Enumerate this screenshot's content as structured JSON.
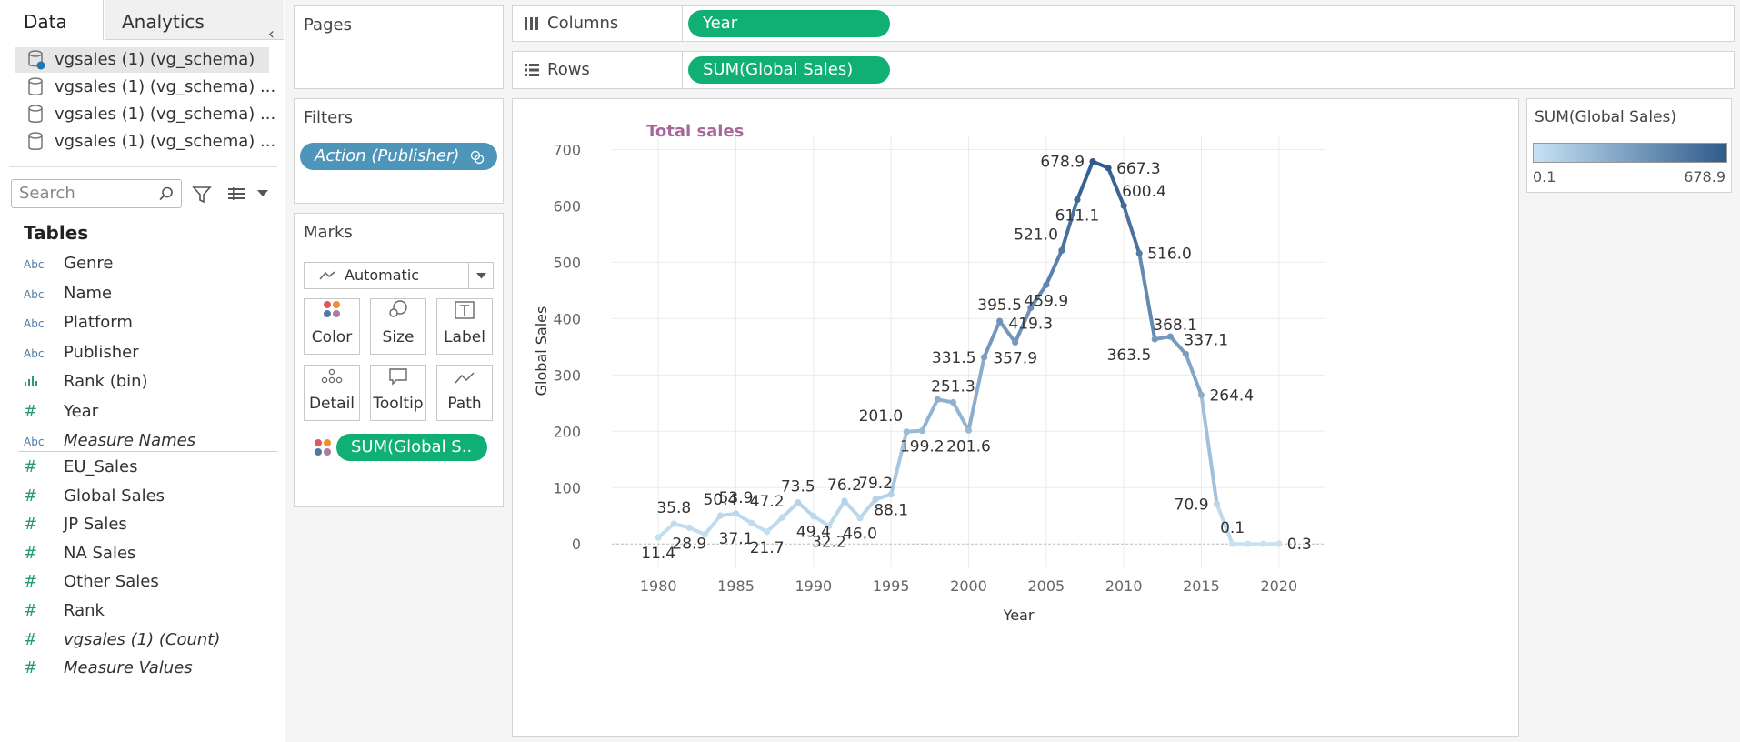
{
  "left_pane": {
    "tabs": [
      "Data",
      "Analytics"
    ],
    "collapse_glyph": "‹",
    "datasources": [
      "vgsales (1) (vg_schema)",
      "vgsales (1) (vg_schema) ...",
      "vgsales (1) (vg_schema) ...",
      "vgsales (1) (vg_schema) ..."
    ],
    "search_placeholder": "Search",
    "tables_title": "Tables",
    "dimensions": [
      {
        "type": "Abc",
        "label": "Genre"
      },
      {
        "type": "Abc",
        "label": "Name"
      },
      {
        "type": "Abc",
        "label": "Platform"
      },
      {
        "type": "Abc",
        "label": "Publisher"
      },
      {
        "type": "bin",
        "label": "Rank (bin)"
      },
      {
        "type": "#",
        "label": "Year"
      },
      {
        "type": "Abc",
        "label": "Measure Names"
      }
    ],
    "measures": [
      {
        "type": "#",
        "label": "EU_Sales"
      },
      {
        "type": "#",
        "label": "Global Sales"
      },
      {
        "type": "#",
        "label": "JP Sales"
      },
      {
        "type": "#",
        "label": "NA Sales"
      },
      {
        "type": "#",
        "label": "Other Sales"
      },
      {
        "type": "#",
        "label": "Rank"
      },
      {
        "type": "#",
        "label": "vgsales (1) (Count)"
      },
      {
        "type": "#",
        "label": "Measure Values"
      }
    ]
  },
  "shelves": {
    "pages_title": "Pages",
    "filters_title": "Filters",
    "filter_pill": "Action (Publisher)",
    "marks_title": "Marks",
    "mark_type": "Automatic",
    "mark_buttons": [
      "Color",
      "Size",
      "Label",
      "Detail",
      "Tooltip",
      "Path"
    ],
    "color_pill": "SUM(Global S..",
    "columns_label": "Columns",
    "columns_pill": "Year",
    "rows_label": "Rows",
    "rows_pill": "SUM(Global Sales)"
  },
  "legend": {
    "title": "SUM(Global Sales)",
    "min_label": "0.1",
    "max_label": "678.9",
    "color_light": "#c6e2f5",
    "color_dark": "#2f5a8a"
  },
  "colors": {
    "pill_green": "#10b074",
    "pill_blue": "#4d96b9",
    "title_purple": "#a6679b"
  },
  "chart_data": {
    "type": "line",
    "title": "Total sales",
    "xlabel": "Year",
    "ylabel": "Global Sales",
    "xlim": [
      1977,
      2023
    ],
    "ylim": [
      -40,
      725
    ],
    "xticks": [
      1980,
      1985,
      1990,
      1995,
      2000,
      2005,
      2010,
      2015,
      2020
    ],
    "yticks": [
      0,
      100,
      200,
      300,
      400,
      500,
      600,
      700
    ],
    "grid": true,
    "x": [
      1980,
      1981,
      1982,
      1983,
      1984,
      1985,
      1986,
      1987,
      1988,
      1989,
      1990,
      1991,
      1992,
      1993,
      1994,
      1995,
      1996,
      1997,
      1998,
      1999,
      2000,
      2001,
      2002,
      2003,
      2004,
      2005,
      2006,
      2007,
      2008,
      2009,
      2010,
      2011,
      2012,
      2013,
      2014,
      2015,
      2016,
      2017,
      2018,
      2019,
      2020
    ],
    "y": [
      11.4,
      35.8,
      28.9,
      16.8,
      50.4,
      53.9,
      37.1,
      21.7,
      47.2,
      73.5,
      49.4,
      32.2,
      76.2,
      46.0,
      79.2,
      88.1,
      199.2,
      201.0,
      256.5,
      251.3,
      201.6,
      331.5,
      395.5,
      357.9,
      419.3,
      459.9,
      521.0,
      611.1,
      678.9,
      667.3,
      600.4,
      516.0,
      363.5,
      368.1,
      337.1,
      264.4,
      70.9,
      0.1,
      0.0,
      0.0,
      0.3
    ],
    "data_labels": [
      {
        "x": 1980,
        "text": "11.4",
        "pos": "below"
      },
      {
        "x": 1981,
        "text": "35.8",
        "pos": "above"
      },
      {
        "x": 1982,
        "text": "28.9",
        "pos": "below"
      },
      {
        "x": 1984,
        "text": "50.4",
        "pos": "above"
      },
      {
        "x": 1985,
        "text": "53.9",
        "pos": "above"
      },
      {
        "x": 1985,
        "text": "37.1",
        "pos": "belowval",
        "val": 37.1
      },
      {
        "x": 1987,
        "text": "47.2",
        "pos": "above",
        "val": 47.2
      },
      {
        "x": 1987,
        "text": "21.7",
        "pos": "below"
      },
      {
        "x": 1989,
        "text": "73.5",
        "pos": "above"
      },
      {
        "x": 1990,
        "text": "49.4",
        "pos": "below"
      },
      {
        "x": 1991,
        "text": "32.2",
        "pos": "below"
      },
      {
        "x": 1992,
        "text": "76.2",
        "pos": "above"
      },
      {
        "x": 1993,
        "text": "46.0",
        "pos": "below"
      },
      {
        "x": 1994,
        "text": "79.2",
        "pos": "above"
      },
      {
        "x": 1995,
        "text": "88.1",
        "pos": "below"
      },
      {
        "x": 1996,
        "text": "201.0",
        "pos": "aboveleft"
      },
      {
        "x": 1997,
        "text": "199.2",
        "pos": "below"
      },
      {
        "x": 1999,
        "text": "251.3",
        "pos": "above"
      },
      {
        "x": 2000,
        "text": "201.6",
        "pos": "below"
      },
      {
        "x": 2001,
        "text": "331.5",
        "pos": "left"
      },
      {
        "x": 2002,
        "text": "395.5",
        "pos": "above"
      },
      {
        "x": 2003,
        "text": "357.9",
        "pos": "below"
      },
      {
        "x": 2004,
        "text": "419.3",
        "pos": "below"
      },
      {
        "x": 2005,
        "text": "459.9",
        "pos": "below"
      },
      {
        "x": 2006,
        "text": "521.0",
        "pos": "aboveleft"
      },
      {
        "x": 2007,
        "text": "611.1",
        "pos": "below"
      },
      {
        "x": 2008,
        "text": "678.9",
        "pos": "left"
      },
      {
        "x": 2009,
        "text": "667.3",
        "pos": "right"
      },
      {
        "x": 2010,
        "text": "600.4",
        "pos": "aboveright"
      },
      {
        "x": 2011,
        "text": "516.0",
        "pos": "right"
      },
      {
        "x": 2012,
        "text": "368.1",
        "pos": "aboveright"
      },
      {
        "x": 2012,
        "text": "363.5",
        "pos": "belowleft"
      },
      {
        "x": 2014,
        "text": "337.1",
        "pos": "aboveright"
      },
      {
        "x": 2015,
        "text": "264.4",
        "pos": "right"
      },
      {
        "x": 2016,
        "text": "70.9",
        "pos": "left"
      },
      {
        "x": 2017,
        "text": "0.1",
        "pos": "above"
      },
      {
        "x": 2020,
        "text": "0.3",
        "pos": "right"
      }
    ]
  }
}
